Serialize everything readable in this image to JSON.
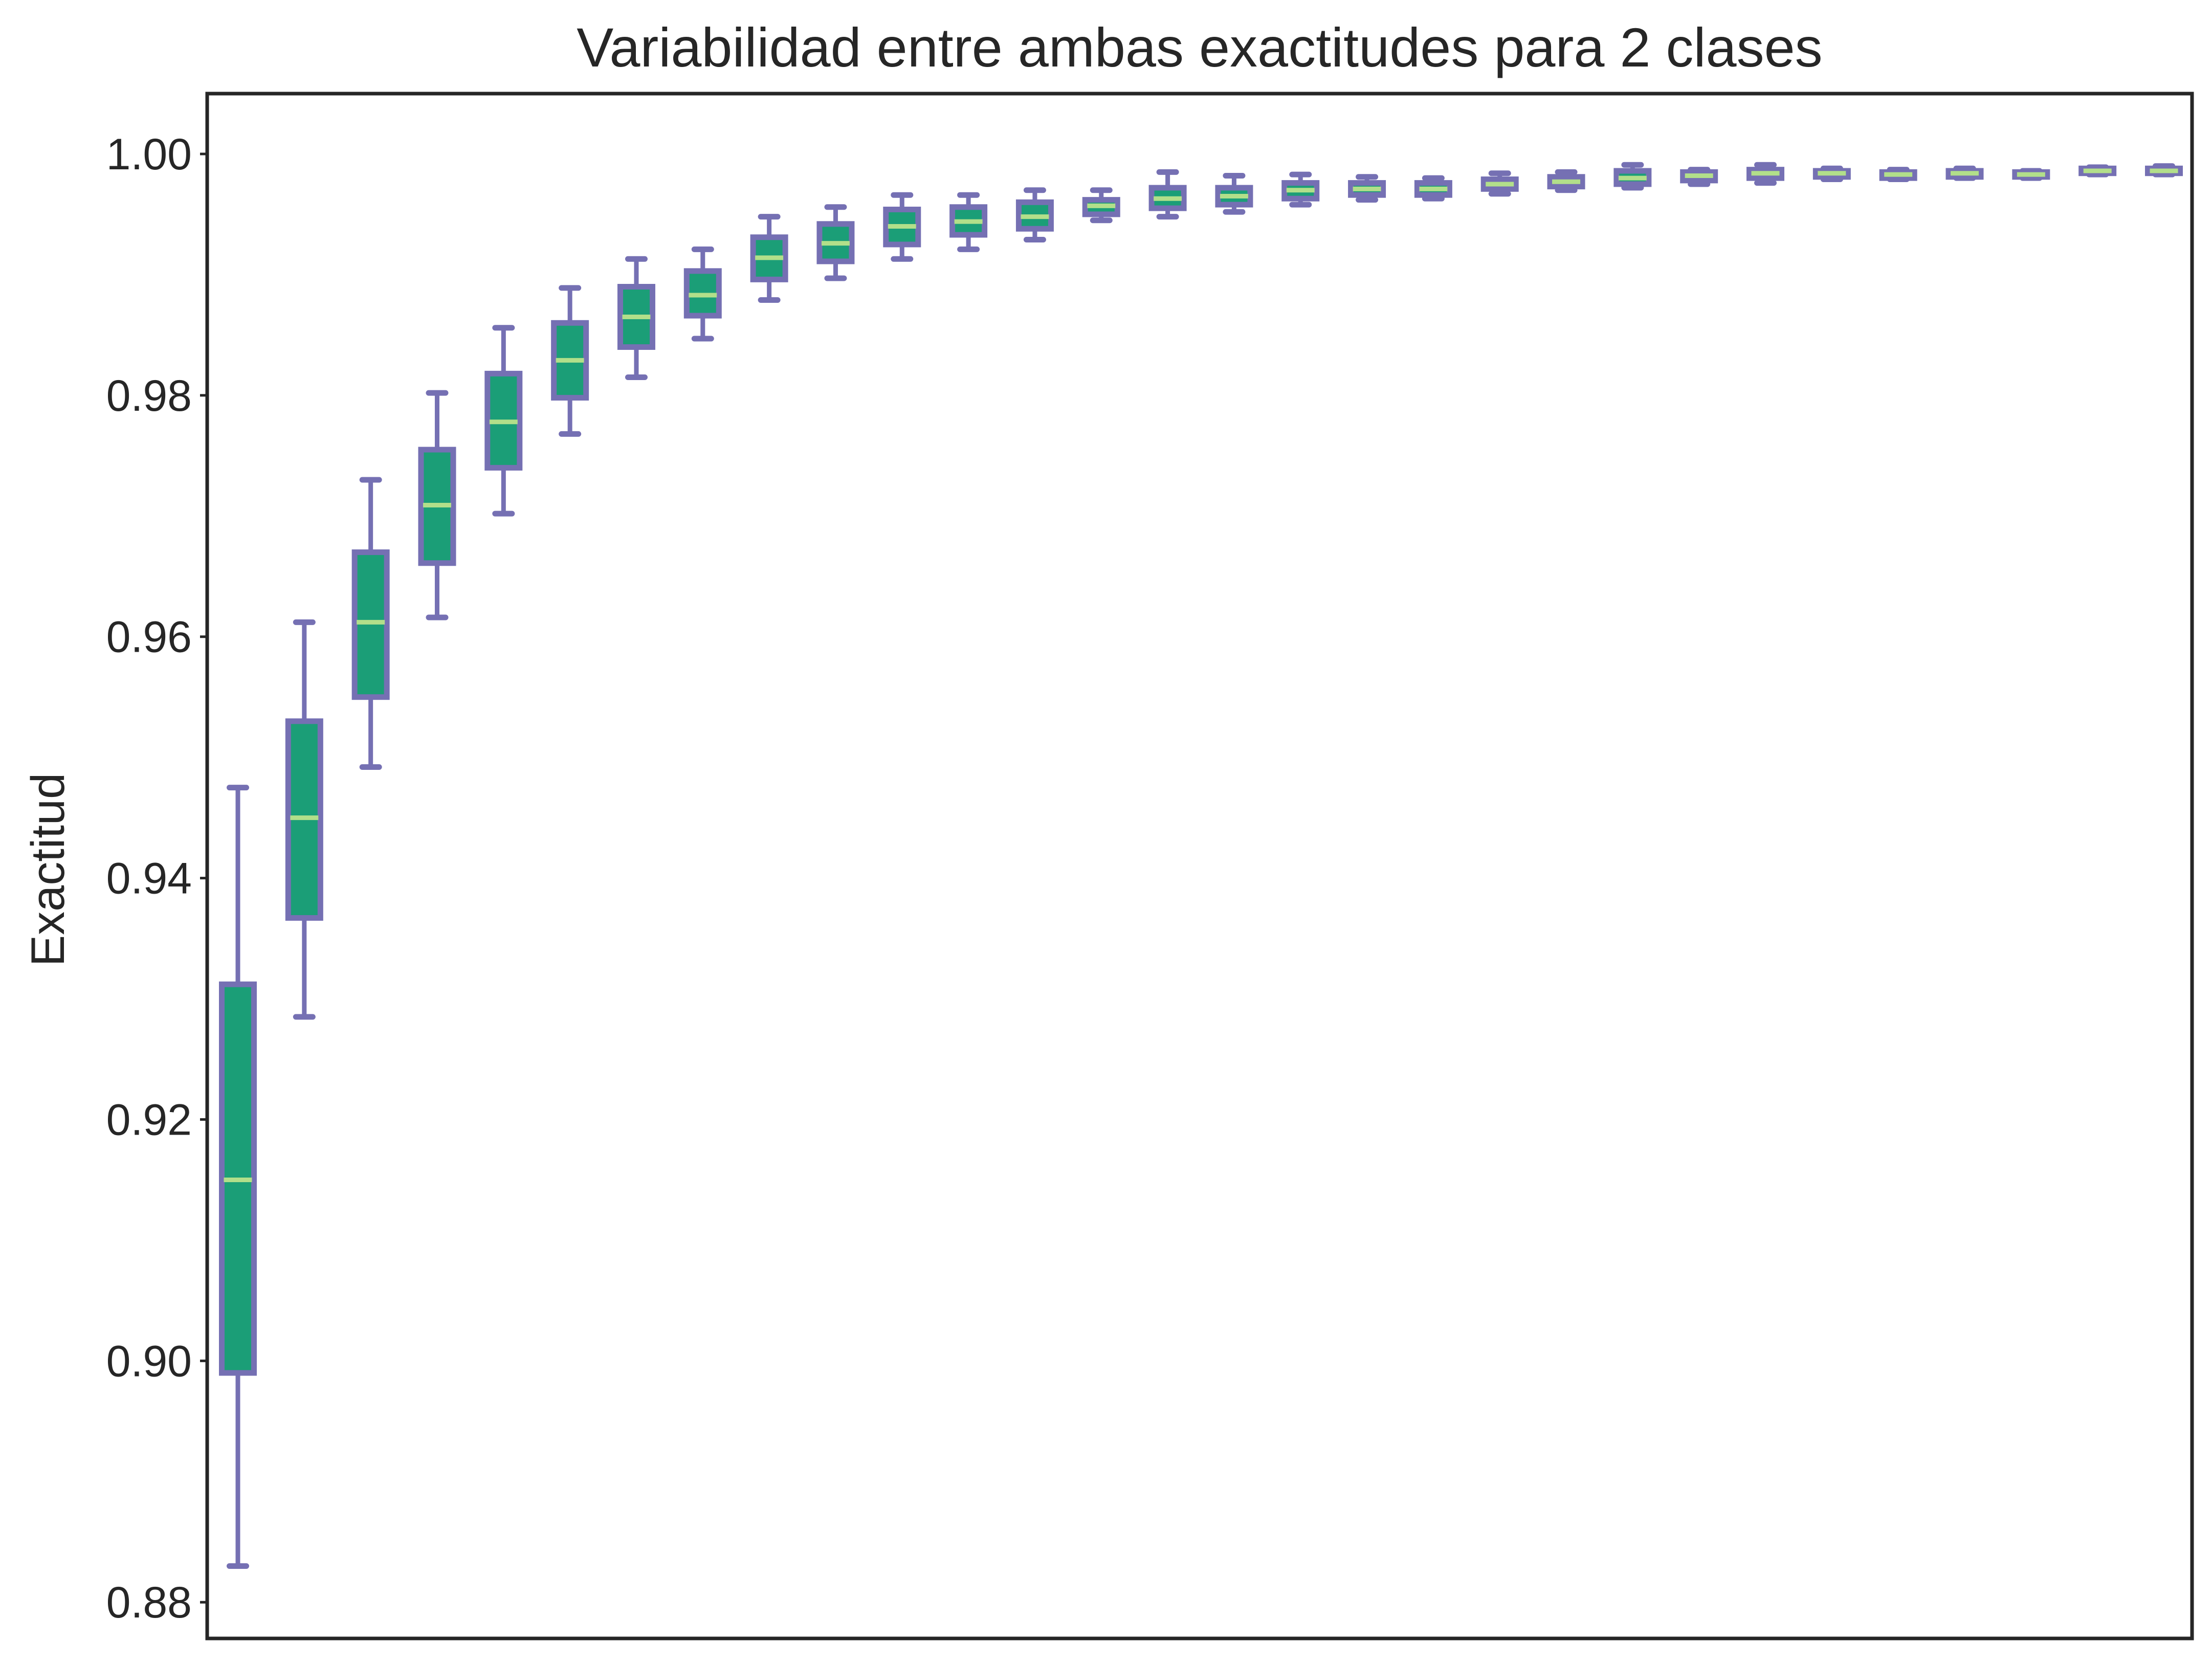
{
  "chart_data": {
    "type": "box",
    "title": "Variabilidad entre ambas exactitudes para 2 clases",
    "xlabel": "",
    "ylabel": "Exactitud",
    "ylim": [
      0.877,
      1.005
    ],
    "yticks": [
      0.88,
      0.9,
      0.92,
      0.94,
      0.96,
      0.98,
      1.0
    ],
    "ytick_labels": [
      "0.88",
      "0.90",
      "0.92",
      "0.94",
      "0.96",
      "0.98",
      "1.00"
    ],
    "xticks_shown": false,
    "grid": false,
    "legend": "none",
    "colors": {
      "box_fill": "#1b9e77",
      "box_edge": "#7570b3",
      "median": "#b2df8a",
      "whisker": "#7570b3",
      "frame": "#262626"
    },
    "boxes": [
      {
        "whislo": 0.883,
        "q1": 0.899,
        "med": 0.915,
        "q3": 0.9312,
        "whishi": 0.9475
      },
      {
        "whislo": 0.9285,
        "q1": 0.9367,
        "med": 0.945,
        "q3": 0.953,
        "whishi": 0.9612
      },
      {
        "whislo": 0.9492,
        "q1": 0.955,
        "med": 0.9612,
        "q3": 0.967,
        "whishi": 0.973
      },
      {
        "whislo": 0.9616,
        "q1": 0.9661,
        "med": 0.9709,
        "q3": 0.9755,
        "whishi": 0.9802
      },
      {
        "whislo": 0.9702,
        "q1": 0.974,
        "med": 0.9778,
        "q3": 0.9818,
        "whishi": 0.9856
      },
      {
        "whislo": 0.9768,
        "q1": 0.9798,
        "med": 0.9829,
        "q3": 0.986,
        "whishi": 0.9889
      },
      {
        "whislo": 0.9815,
        "q1": 0.984,
        "med": 0.9865,
        "q3": 0.989,
        "whishi": 0.9913
      },
      {
        "whislo": 0.9847,
        "q1": 0.9866,
        "med": 0.9883,
        "q3": 0.9903,
        "whishi": 0.9921
      },
      {
        "whislo": 0.9879,
        "q1": 0.9896,
        "med": 0.9914,
        "q3": 0.9931,
        "whishi": 0.9948
      },
      {
        "whislo": 0.9897,
        "q1": 0.9911,
        "med": 0.9926,
        "q3": 0.9942,
        "whishi": 0.9956
      },
      {
        "whislo": 0.9913,
        "q1": 0.9925,
        "med": 0.994,
        "q3": 0.9954,
        "whishi": 0.9966
      },
      {
        "whislo": 0.9921,
        "q1": 0.9933,
        "med": 0.9944,
        "q3": 0.9956,
        "whishi": 0.9966
      },
      {
        "whislo": 0.9929,
        "q1": 0.9938,
        "med": 0.9948,
        "q3": 0.996,
        "whishi": 0.997
      },
      {
        "whislo": 0.9945,
        "q1": 0.995,
        "med": 0.9957,
        "q3": 0.9962,
        "whishi": 0.997
      },
      {
        "whislo": 0.9948,
        "q1": 0.9955,
        "med": 0.9963,
        "q3": 0.9972,
        "whishi": 0.9985
      },
      {
        "whislo": 0.9952,
        "q1": 0.9958,
        "med": 0.9965,
        "q3": 0.9972,
        "whishi": 0.9982
      },
      {
        "whislo": 0.9958,
        "q1": 0.9963,
        "med": 0.997,
        "q3": 0.9976,
        "whishi": 0.9983
      },
      {
        "whislo": 0.9962,
        "q1": 0.9966,
        "med": 0.9971,
        "q3": 0.9976,
        "whishi": 0.9981
      },
      {
        "whislo": 0.9963,
        "q1": 0.9966,
        "med": 0.9971,
        "q3": 0.9976,
        "whishi": 0.998
      },
      {
        "whislo": 0.9967,
        "q1": 0.9971,
        "med": 0.9975,
        "q3": 0.9979,
        "whishi": 0.9984
      },
      {
        "whislo": 0.997,
        "q1": 0.9973,
        "med": 0.9977,
        "q3": 0.9981,
        "whishi": 0.9985
      },
      {
        "whislo": 0.9972,
        "q1": 0.9975,
        "med": 0.998,
        "q3": 0.9986,
        "whishi": 0.9991
      },
      {
        "whislo": 0.9975,
        "q1": 0.9978,
        "med": 0.9982,
        "q3": 0.9985,
        "whishi": 0.9987
      },
      {
        "whislo": 0.9976,
        "q1": 0.998,
        "med": 0.9984,
        "q3": 0.9987,
        "whishi": 0.9991
      },
      {
        "whislo": 0.9979,
        "q1": 0.9981,
        "med": 0.9984,
        "q3": 0.9986,
        "whishi": 0.9988
      },
      {
        "whislo": 0.9979,
        "q1": 0.998,
        "med": 0.9983,
        "q3": 0.9985,
        "whishi": 0.9987
      },
      {
        "whislo": 0.998,
        "q1": 0.9981,
        "med": 0.9984,
        "q3": 0.9986,
        "whishi": 0.9988
      },
      {
        "whislo": 0.998,
        "q1": 0.9981,
        "med": 0.9983,
        "q3": 0.9985,
        "whishi": 0.9986
      },
      {
        "whislo": 0.9983,
        "q1": 0.9984,
        "med": 0.9986,
        "q3": 0.9988,
        "whishi": 0.9989
      },
      {
        "whislo": 0.9983,
        "q1": 0.9984,
        "med": 0.9986,
        "q3": 0.9988,
        "whishi": 0.999
      }
    ]
  }
}
